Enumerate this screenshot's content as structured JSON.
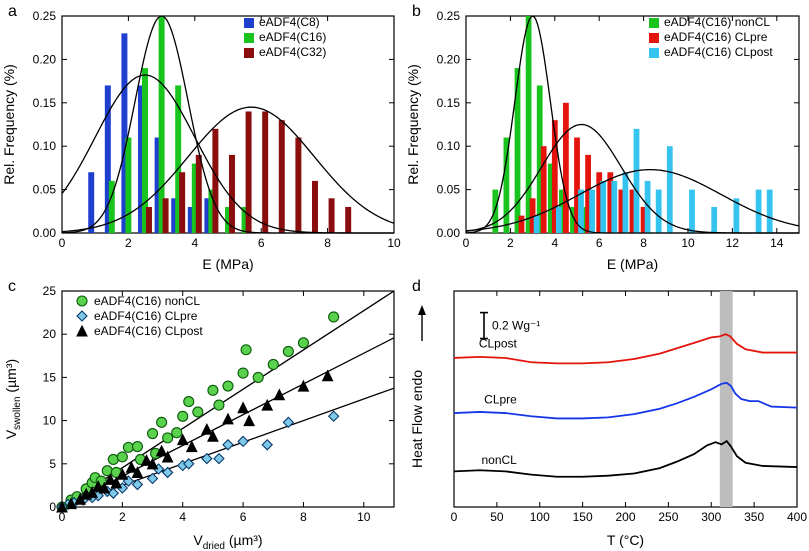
{
  "panelA": {
    "label": "a",
    "type": "bar-with-gaussian",
    "xlabel": "E (MPa)",
    "ylabel": "Rel. Frequency (%)",
    "xlim": [
      0,
      10
    ],
    "xtick_step": 2,
    "ylim": [
      0,
      0.25
    ],
    "ytick_step": 0.05,
    "bar_half_width": 0.09,
    "series": [
      {
        "name": "eADF4(C8)",
        "color": "#1f3fcf",
        "offset": -0.12,
        "bars": [
          [
            1,
            0.07
          ],
          [
            1.5,
            0.17
          ],
          [
            2,
            0.23
          ],
          [
            2.5,
            0.17
          ],
          [
            3,
            0.11
          ],
          [
            3.5,
            0.04
          ],
          [
            4,
            0.03
          ],
          [
            4.5,
            0.04
          ]
        ]
      },
      {
        "name": "eADF4(C16)",
        "color": "#19c41e",
        "offset": 0.0,
        "bars": [
          [
            1.5,
            0.06
          ],
          [
            2,
            0.11
          ],
          [
            2.5,
            0.19
          ],
          [
            3,
            0.25
          ],
          [
            3.5,
            0.17
          ],
          [
            4,
            0.08
          ],
          [
            4.5,
            0.05
          ],
          [
            5,
            0.03
          ],
          [
            5.5,
            0.03
          ]
        ]
      },
      {
        "name": "eADF4(C32)",
        "color": "#8a0e0e",
        "offset": 0.12,
        "bars": [
          [
            2.5,
            0.03
          ],
          [
            3,
            0.04
          ],
          [
            3.5,
            0.07
          ],
          [
            4,
            0.09
          ],
          [
            4.5,
            0.12
          ],
          [
            5,
            0.09
          ],
          [
            5.5,
            0.14
          ],
          [
            6,
            0.14
          ],
          [
            6.5,
            0.13
          ],
          [
            7,
            0.11
          ],
          [
            7.5,
            0.06
          ],
          [
            8,
            0.04
          ],
          [
            8.5,
            0.03
          ]
        ]
      }
    ],
    "gaussians": [
      {
        "mu": 2.5,
        "sigma": 1.5,
        "amp": 0.182
      },
      {
        "mu": 3.0,
        "sigma": 0.8,
        "amp": 0.25
      },
      {
        "mu": 5.7,
        "sigma": 1.9,
        "amp": 0.145
      }
    ],
    "background": "#ffffff",
    "tick_fontsize": 12,
    "label_fontsize": 14
  },
  "panelB": {
    "label": "b",
    "type": "bar-with-gaussian",
    "xlabel": "E (MPa)",
    "ylabel": "Rel. Frequency (%)",
    "xlim": [
      0,
      15
    ],
    "xtick_step": 2,
    "ylim": [
      0,
      0.25
    ],
    "ytick_step": 0.05,
    "bar_half_width": 0.13,
    "series": [
      {
        "name": "eADF4(C16) nonCL",
        "color": "#19c41e",
        "offset": -0.18,
        "bars": [
          [
            1.5,
            0.05
          ],
          [
            2,
            0.11
          ],
          [
            2.5,
            0.19
          ],
          [
            3,
            0.25
          ],
          [
            3.5,
            0.17
          ],
          [
            4,
            0.08
          ],
          [
            4.5,
            0.05
          ],
          [
            5,
            0.03
          ],
          [
            5.5,
            0.03
          ]
        ]
      },
      {
        "name": "eADF4(C16) CLpre",
        "color": "#e4140c",
        "offset": 0.0,
        "bars": [
          [
            2.5,
            0.02
          ],
          [
            3,
            0.04
          ],
          [
            3.5,
            0.1
          ],
          [
            4,
            0.13
          ],
          [
            4.5,
            0.15
          ],
          [
            5,
            0.11
          ],
          [
            5.5,
            0.09
          ],
          [
            6,
            0.07
          ],
          [
            6.5,
            0.07
          ],
          [
            7,
            0.05
          ],
          [
            7.5,
            0.05
          ],
          [
            8,
            0.03
          ]
        ]
      },
      {
        "name": "eADF4(C16) CLpost",
        "color": "#35c4ef",
        "offset": 0.18,
        "bars": [
          [
            3,
            0.02
          ],
          [
            4,
            0.03
          ],
          [
            5,
            0.05
          ],
          [
            5.5,
            0.05
          ],
          [
            6,
            0.06
          ],
          [
            6.5,
            0.06
          ],
          [
            7,
            0.07
          ],
          [
            7.5,
            0.12
          ],
          [
            8,
            0.06
          ],
          [
            8.5,
            0.05
          ],
          [
            9,
            0.1
          ],
          [
            10,
            0.05
          ],
          [
            11,
            0.03
          ],
          [
            12,
            0.04
          ],
          [
            13,
            0.05
          ],
          [
            13.5,
            0.05
          ]
        ]
      }
    ],
    "gaussians": [
      {
        "mu": 3.0,
        "sigma": 0.8,
        "amp": 0.25
      },
      {
        "mu": 5.2,
        "sigma": 1.8,
        "amp": 0.125
      },
      {
        "mu": 8.3,
        "sigma": 3.2,
        "amp": 0.073
      }
    ],
    "background": "#ffffff",
    "tick_fontsize": 12,
    "label_fontsize": 14
  },
  "panelC": {
    "label": "c",
    "type": "scatter",
    "xlabel": "Vdried  (µm³)",
    "xlabel_sub": "dried",
    "ylabel": "Vswollen  (µm³)",
    "ylabel_sub": "swollen",
    "xlim": [
      0,
      11
    ],
    "xtick_step": 2,
    "ylim": [
      0,
      25
    ],
    "ytick_step": 5,
    "series": [
      {
        "name": "eADF4(C16) nonCL",
        "marker": "circle",
        "size": 5,
        "fill": "#5bd24e",
        "stroke": "#0a5a0a",
        "points": [
          [
            0.3,
            0.8
          ],
          [
            0.5,
            1.2
          ],
          [
            0.8,
            2.1
          ],
          [
            1.0,
            2.8
          ],
          [
            1.1,
            3.4
          ],
          [
            1.3,
            3.0
          ],
          [
            1.5,
            4.2
          ],
          [
            1.7,
            5.5
          ],
          [
            1.8,
            4.0
          ],
          [
            2.0,
            5.8
          ],
          [
            2.2,
            6.9
          ],
          [
            2.5,
            7.0
          ],
          [
            2.6,
            5.5
          ],
          [
            3.0,
            8.5
          ],
          [
            3.1,
            6.2
          ],
          [
            3.3,
            9.8
          ],
          [
            3.5,
            8.0
          ],
          [
            3.8,
            8.6
          ],
          [
            4.0,
            10.5
          ],
          [
            4.2,
            12.2
          ],
          [
            4.5,
            11.0
          ],
          [
            5.0,
            13.5
          ],
          [
            5.2,
            11.8
          ],
          [
            5.5,
            14.0
          ],
          [
            6.0,
            15.5
          ],
          [
            6.1,
            18.2
          ],
          [
            6.5,
            15.0
          ],
          [
            7.0,
            16.5
          ],
          [
            7.5,
            18.0
          ],
          [
            8.0,
            19.0
          ],
          [
            9.0,
            22.0
          ]
        ],
        "fitline": {
          "slope": 2.45,
          "intercept": 0
        }
      },
      {
        "name": "eADF4(C16) CLpre",
        "marker": "diamond",
        "size": 5,
        "fill": "#7ec8e8",
        "stroke": "#0a3a6a",
        "points": [
          [
            0.2,
            0.3
          ],
          [
            0.4,
            0.5
          ],
          [
            0.7,
            0.8
          ],
          [
            1.0,
            1.1
          ],
          [
            1.2,
            1.3
          ],
          [
            1.5,
            1.8
          ],
          [
            1.7,
            1.6
          ],
          [
            2.0,
            2.2
          ],
          [
            2.2,
            3.0
          ],
          [
            2.5,
            2.6
          ],
          [
            3.0,
            3.3
          ],
          [
            3.2,
            4.4
          ],
          [
            3.5,
            4.0
          ],
          [
            4.0,
            4.8
          ],
          [
            4.2,
            5.0
          ],
          [
            4.8,
            5.6
          ],
          [
            5.2,
            5.6
          ],
          [
            5.5,
            7.2
          ],
          [
            6.0,
            7.6
          ],
          [
            6.8,
            7.2
          ],
          [
            7.5,
            9.8
          ],
          [
            9.0,
            10.5
          ]
        ],
        "fitline": {
          "slope": 1.25,
          "intercept": 0
        }
      },
      {
        "name": "eADF4(C16) CLpost",
        "marker": "triangle",
        "size": 5,
        "fill": "#000000",
        "stroke": "#000000",
        "points": [
          [
            0.3,
            0.4
          ],
          [
            0.6,
            0.9
          ],
          [
            0.8,
            1.5
          ],
          [
            1.0,
            1.7
          ],
          [
            1.2,
            2.4
          ],
          [
            1.4,
            2.2
          ],
          [
            1.6,
            3.2
          ],
          [
            1.8,
            2.8
          ],
          [
            2.0,
            3.8
          ],
          [
            2.3,
            4.6
          ],
          [
            2.5,
            4.0
          ],
          [
            2.8,
            5.4
          ],
          [
            3.0,
            5.0
          ],
          [
            3.3,
            6.5
          ],
          [
            3.5,
            5.8
          ],
          [
            4.0,
            7.8
          ],
          [
            4.3,
            7.0
          ],
          [
            4.8,
            9.0
          ],
          [
            5.0,
            8.2
          ],
          [
            5.5,
            10.2
          ],
          [
            6.0,
            11.5
          ],
          [
            6.2,
            10.0
          ],
          [
            6.8,
            11.8
          ],
          [
            7.2,
            13.0
          ],
          [
            8.0,
            14.0
          ],
          [
            8.8,
            15.2
          ]
        ],
        "fitline": {
          "slope": 1.78,
          "intercept": 0
        }
      }
    ],
    "background": "#ffffff",
    "tick_fontsize": 12,
    "label_fontsize": 14
  },
  "panelD": {
    "label": "d",
    "type": "line",
    "xlabel": "T (°C)",
    "ylabel": "Heat Flow endo",
    "ylabel_arrow": true,
    "xlim": [
      0,
      400
    ],
    "xtick_step": 50,
    "ylim": [
      0,
      1
    ],
    "scalebar": {
      "label": "0.2 Wg⁻¹",
      "height": 0.12,
      "x": 40,
      "y_top": 0.9
    },
    "highlight_band": {
      "xmin": 310,
      "xmax": 325,
      "color": "#bdbdbd"
    },
    "curves": [
      {
        "name": "CLpost",
        "color": "#e4140c",
        "baseline": 0.72,
        "label_x": 15,
        "points": [
          [
            0,
            0.69
          ],
          [
            30,
            0.695
          ],
          [
            60,
            0.69
          ],
          [
            90,
            0.67
          ],
          [
            120,
            0.665
          ],
          [
            150,
            0.665
          ],
          [
            180,
            0.67
          ],
          [
            210,
            0.685
          ],
          [
            240,
            0.71
          ],
          [
            260,
            0.735
          ],
          [
            280,
            0.76
          ],
          [
            300,
            0.785
          ],
          [
            310,
            0.79
          ],
          [
            317,
            0.8
          ],
          [
            322,
            0.79
          ],
          [
            330,
            0.755
          ],
          [
            340,
            0.73
          ],
          [
            360,
            0.715
          ],
          [
            400,
            0.715
          ]
        ]
      },
      {
        "name": "CLpre",
        "color": "#1536e8",
        "baseline": 0.46,
        "label_x": 15,
        "points": [
          [
            0,
            0.435
          ],
          [
            30,
            0.44
          ],
          [
            60,
            0.435
          ],
          [
            90,
            0.42
          ],
          [
            120,
            0.41
          ],
          [
            150,
            0.41
          ],
          [
            180,
            0.415
          ],
          [
            210,
            0.43
          ],
          [
            240,
            0.455
          ],
          [
            260,
            0.48
          ],
          [
            280,
            0.51
          ],
          [
            300,
            0.545
          ],
          [
            312,
            0.57
          ],
          [
            318,
            0.575
          ],
          [
            323,
            0.56
          ],
          [
            328,
            0.525
          ],
          [
            335,
            0.5
          ],
          [
            345,
            0.49
          ],
          [
            355,
            0.49
          ],
          [
            370,
            0.465
          ],
          [
            400,
            0.46
          ]
        ]
      },
      {
        "name": "nonCL",
        "color": "#000000",
        "baseline": 0.18,
        "label_x": 15,
        "points": [
          [
            0,
            0.165
          ],
          [
            30,
            0.17
          ],
          [
            60,
            0.165
          ],
          [
            90,
            0.15
          ],
          [
            120,
            0.14
          ],
          [
            150,
            0.14
          ],
          [
            180,
            0.145
          ],
          [
            210,
            0.155
          ],
          [
            240,
            0.18
          ],
          [
            260,
            0.21
          ],
          [
            280,
            0.245
          ],
          [
            295,
            0.285
          ],
          [
            305,
            0.3
          ],
          [
            312,
            0.29
          ],
          [
            318,
            0.305
          ],
          [
            323,
            0.28
          ],
          [
            330,
            0.235
          ],
          [
            340,
            0.205
          ],
          [
            360,
            0.19
          ],
          [
            400,
            0.185
          ]
        ]
      }
    ],
    "background": "#ffffff",
    "tick_fontsize": 12,
    "label_fontsize": 14
  }
}
